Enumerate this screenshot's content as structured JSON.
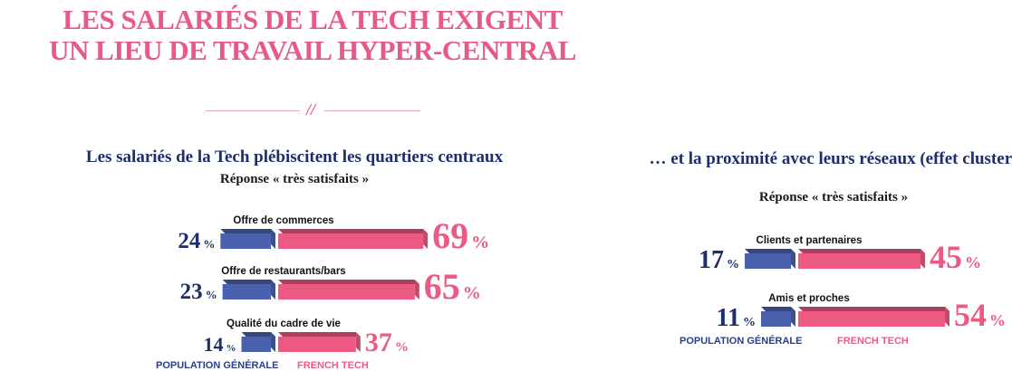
{
  "title_lines": [
    "LES SALARIÉS DE LA TECH EXIGENT",
    "UN LIEU DE TRAVAIL HYPER-CENTRAL"
  ],
  "colors": {
    "pop": "#4a62ad",
    "tech": "#ec5a83",
    "title": "#e85a86",
    "heading": "#1d2f6a"
  },
  "chart_data": [
    {
      "type": "bar",
      "title": "Les salariés de la Tech plébiscitent les quartiers centraux",
      "subtitle": "Réponse « très satisfaits »",
      "categories": [
        "Offre de commerces",
        "Offre de restaurants/bars",
        "Qualité du cadre de vie"
      ],
      "series": [
        {
          "name": "POPULATION GÉNÉRALE",
          "values": [
            24,
            23,
            14
          ]
        },
        {
          "name": "FRENCH TECH",
          "values": [
            69,
            65,
            37
          ]
        }
      ],
      "unit": "%",
      "legend": "bottom"
    },
    {
      "type": "bar",
      "title": "… et la proximité avec leurs réseaux (effet cluster)",
      "subtitle": "Réponse « très satisfaits »",
      "categories": [
        "Clients et partenaires",
        "Amis et proches"
      ],
      "series": [
        {
          "name": "POPULATION GÉNÉRALE",
          "values": [
            17,
            11
          ]
        },
        {
          "name": "FRENCH TECH",
          "values": [
            45,
            54
          ]
        }
      ],
      "unit": "%",
      "legend": "bottom"
    }
  ]
}
